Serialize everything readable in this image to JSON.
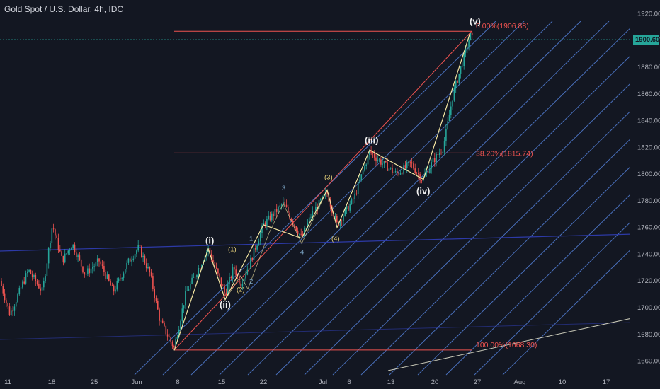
{
  "header": {
    "title": "Gold Spot / U.S. Dollar, 4h, IDC"
  },
  "chart_data": {
    "type": "candlestick",
    "ylim": [
      1655,
      1925
    ],
    "y_ticks": [
      1660,
      1680,
      1700,
      1720,
      1740,
      1760,
      1780,
      1800,
      1820,
      1840,
      1860,
      1880,
      1900,
      1920
    ],
    "x_ticks": [
      "11",
      "18",
      "25",
      "Jun",
      "8",
      "15",
      "22",
      "Jul",
      "6",
      "13",
      "20",
      "27",
      "Aug",
      "10",
      "17"
    ],
    "last_price": "1900.60",
    "last_price_value": 1900.6,
    "fib_levels": [
      {
        "label": "0.00%(1906.88)",
        "value": 1906.88
      },
      {
        "label": "38.20%(1815.74)",
        "value": 1815.74
      },
      {
        "label": "100.00%(1668.30)",
        "value": 1668.3
      }
    ],
    "wave_labels": [
      {
        "text": "(i)",
        "value": 1746
      },
      {
        "text": "(ii)",
        "value": 1706
      },
      {
        "text": "(iii)",
        "value": 1820
      },
      {
        "text": "(iv)",
        "value": 1796
      },
      {
        "text": "(v)",
        "value": 1906
      }
    ],
    "sub_wave_labels": [
      "(1)",
      "(2)",
      "(3)",
      "(4)"
    ],
    "minor_wave_labels": [
      "1",
      "2",
      "3",
      "4"
    ],
    "colors": {
      "background": "#131722",
      "up": "#26a69a",
      "down": "#ef5350",
      "channel": "#5b8def",
      "fib": "#ef5350",
      "wave_path": "#f5e7a3",
      "trendline": "#2d3aa8",
      "support": "#c9c9b8",
      "last_price": "#26a69a"
    }
  }
}
